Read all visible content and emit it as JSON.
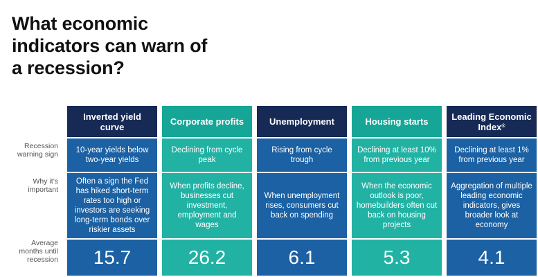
{
  "title": "What economic indicators can warn of a recession?",
  "row_labels": {
    "sign": "Recession warning sign",
    "why": "Why it’s important",
    "months": "Average months until recession"
  },
  "columns": [
    {
      "header": "Inverted yield curve",
      "sign": "10-year yields below two-year yields",
      "why": "Often a sign the Fed has hiked short-term rates too high or investors are seeking long-term bonds over riskier assets",
      "months": "15.7"
    },
    {
      "header": "Corporate profits",
      "sign": "Declining from cycle peak",
      "why": "When profits decline, businesses cut investment, employment and wages",
      "months": "26.2"
    },
    {
      "header": "Unemployment",
      "sign": "Rising from cycle trough",
      "why": "When unemployment rises, consumers cut back on spending",
      "months": "6.1"
    },
    {
      "header": "Housing starts",
      "sign": "Declining at least 10% from previous year",
      "why": "When the economic outlook is poor, homebuilders often cut back on housing projects",
      "months": "5.3"
    },
    {
      "header": "Leading Economic Index",
      "header_sup": "®",
      "sign": "Declining at least 1% from previous year",
      "why": "Aggregation of multiple leading economic indicators, gives broader look at economy",
      "months": "4.1"
    }
  ],
  "colors": {
    "navy_header": "#162a55",
    "teal_header": "#16a697",
    "blue_cell": "#1b61a3",
    "teal_cell": "#22b2a4"
  }
}
